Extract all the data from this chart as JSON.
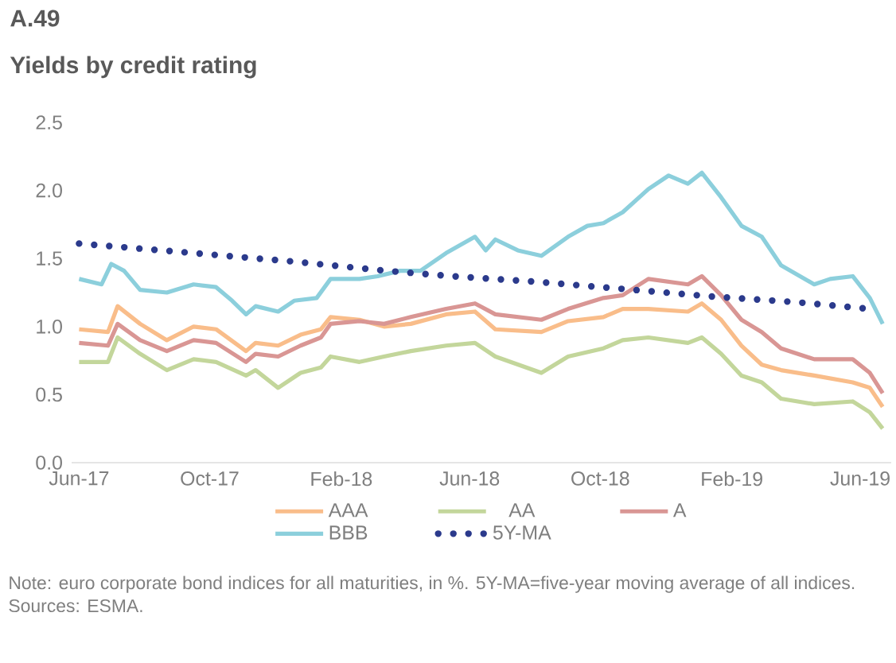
{
  "chart_data": {
    "type": "line",
    "title": "A.49",
    "subtitle": "Yields by credit rating",
    "annotations": [
      "Note: euro corporate bond indices for all maturities, in %. 5Y-MA=five-year moving average of all indices.",
      "Sources: ESMA."
    ],
    "xlim": [
      "2017-05-25",
      "2019-06-30"
    ],
    "xticks": [
      {
        "value": "2017-06-01",
        "label": "Jun-17"
      },
      {
        "value": "2017-10-01",
        "label": "Oct-17"
      },
      {
        "value": "2018-02-01",
        "label": "Feb-18"
      },
      {
        "value": "2018-06-01",
        "label": "Jun-18"
      },
      {
        "value": "2018-10-01",
        "label": "Oct-18"
      },
      {
        "value": "2019-02-01",
        "label": "Feb-19"
      },
      {
        "value": "2019-06-01",
        "label": "Jun-19"
      }
    ],
    "ylim": [
      0,
      2.5
    ],
    "yticks": [
      {
        "value": 0,
        "label": "0.0"
      },
      {
        "value": 0.5,
        "label": "0.5"
      },
      {
        "value": 1,
        "label": "1.0"
      },
      {
        "value": 1.5,
        "label": "1.5"
      },
      {
        "value": 2,
        "label": "2.0"
      },
      {
        "value": 2.5,
        "label": "2.5"
      }
    ],
    "x": [
      "2017-06-01",
      "2017-06-28",
      "2017-07-07",
      "2017-07-28",
      "2017-08-22",
      "2017-09-16",
      "2017-10-07",
      "2017-11-04",
      "2017-11-13",
      "2017-12-04",
      "2017-12-25",
      "2018-01-13",
      "2018-01-22",
      "2018-02-18",
      "2018-03-13",
      "2018-04-07",
      "2018-05-10",
      "2018-06-06",
      "2018-06-25",
      "2018-08-07",
      "2018-09-01",
      "2018-10-04",
      "2018-10-22",
      "2018-11-15",
      "2018-12-22",
      "2019-01-04",
      "2019-01-22",
      "2019-02-10",
      "2019-03-01",
      "2019-03-19",
      "2019-04-19",
      "2019-05-25",
      "2019-06-10",
      "2019-06-22"
    ],
    "series": [
      {
        "name": "AAA",
        "color": "#f9bd8a",
        "values": [
          0.98,
          0.96,
          1.15,
          1.02,
          0.9,
          1.0,
          0.98,
          0.82,
          0.88,
          0.86,
          0.94,
          0.98,
          1.07,
          1.05,
          1.0,
          1.02,
          1.09,
          1.11,
          0.98,
          0.96,
          1.04,
          1.07,
          1.13,
          1.13,
          1.11,
          1.17,
          1.05,
          0.86,
          0.72,
          0.68,
          0.64,
          0.59,
          0.55,
          0.41
        ]
      },
      {
        "name": "AA",
        "color": "#c3d69b",
        "values": [
          0.74,
          0.74,
          0.92,
          0.8,
          0.68,
          0.76,
          0.74,
          0.64,
          0.68,
          0.55,
          0.66,
          0.7,
          0.78,
          0.74,
          0.78,
          0.82,
          0.86,
          0.88,
          0.78,
          0.66,
          0.78,
          0.84,
          0.9,
          0.92,
          0.88,
          0.92,
          0.8,
          0.64,
          0.59,
          0.47,
          0.43,
          0.45,
          0.37,
          0.25
        ]
      },
      {
        "name": "A",
        "color": "#d99694",
        "values": [
          0.88,
          0.86,
          1.02,
          0.9,
          0.82,
          0.9,
          0.88,
          0.74,
          0.8,
          0.78,
          0.86,
          0.92,
          1.02,
          1.04,
          1.02,
          1.07,
          1.13,
          1.17,
          1.09,
          1.05,
          1.13,
          1.21,
          1.23,
          1.35,
          1.31,
          1.37,
          1.23,
          1.05,
          0.96,
          0.84,
          0.76,
          0.76,
          0.66,
          0.51
        ]
      },
      {
        "name": "BBB",
        "color": "#8ccfdc",
        "x": [
          "2017-06-01",
          "2017-06-22",
          "2017-07-01",
          "2017-07-13",
          "2017-07-28",
          "2017-08-22",
          "2017-09-16",
          "2017-10-07",
          "2017-10-22",
          "2017-11-04",
          "2017-11-13",
          "2017-12-04",
          "2017-12-19",
          "2018-01-09",
          "2018-01-22",
          "2018-02-18",
          "2018-03-07",
          "2018-03-28",
          "2018-04-16",
          "2018-05-10",
          "2018-06-06",
          "2018-06-16",
          "2018-06-25",
          "2018-07-16",
          "2018-08-07",
          "2018-09-01",
          "2018-09-19",
          "2018-10-04",
          "2018-10-22",
          "2018-11-15",
          "2018-12-04",
          "2018-12-22",
          "2019-01-04",
          "2019-01-22",
          "2019-02-10",
          "2019-03-01",
          "2019-03-19",
          "2019-04-19",
          "2019-05-04",
          "2019-05-25",
          "2019-06-10",
          "2019-06-22"
        ],
        "values": [
          1.35,
          1.31,
          1.46,
          1.41,
          1.27,
          1.25,
          1.31,
          1.29,
          1.19,
          1.09,
          1.15,
          1.11,
          1.19,
          1.21,
          1.35,
          1.35,
          1.37,
          1.41,
          1.41,
          1.54,
          1.66,
          1.56,
          1.64,
          1.56,
          1.52,
          1.66,
          1.74,
          1.76,
          1.84,
          2.01,
          2.11,
          2.05,
          2.13,
          1.95,
          1.74,
          1.66,
          1.45,
          1.31,
          1.35,
          1.37,
          1.21,
          1.02
        ]
      },
      {
        "name": "5Y-MA",
        "color": "#2b3a8c",
        "line_style": "dotted",
        "x": [
          "2017-06-01",
          "2017-09-01",
          "2017-12-15",
          "2018-03-15",
          "2018-05-15",
          "2018-08-01",
          "2018-11-01",
          "2019-01-15",
          "2019-04-01",
          "2019-06-10"
        ],
        "values": [
          1.61,
          1.55,
          1.48,
          1.41,
          1.37,
          1.33,
          1.27,
          1.22,
          1.18,
          1.13
        ]
      }
    ],
    "grid": false,
    "legend": "bottom",
    "line_style": "solid"
  }
}
